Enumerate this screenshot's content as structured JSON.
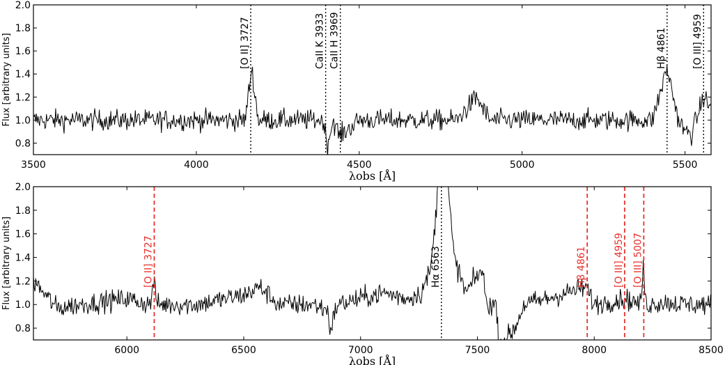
{
  "chart_data": [
    {
      "type": "line",
      "xlabel": "λobs [Å]",
      "ylabel": "Flux [arbitrary units]",
      "xlim": [
        3500,
        5580
      ],
      "ylim": [
        0.7,
        2.0
      ],
      "xticks": [
        "3500",
        "4000",
        "4500",
        "5000",
        "5500"
      ],
      "yticks": [
        "0.8",
        "1.0",
        "1.2",
        "1.4",
        "1.6",
        "1.8",
        "2.0"
      ],
      "series": [
        {
          "style": "noisy spectrum, continuum near 1.0",
          "x": [
            3500,
            3600,
            3700,
            3800,
            3900,
            4000,
            4100,
            4150,
            4170,
            4190,
            4250,
            4300,
            4350,
            4390,
            4402,
            4420,
            4440,
            4500,
            4600,
            4700,
            4800,
            4860,
            4900,
            5000,
            5100,
            5200,
            5300,
            5400,
            5445,
            5480,
            5500,
            5520,
            5557,
            5580
          ],
          "y": [
            1.0,
            1.0,
            1.0,
            1.0,
            1.0,
            1.0,
            1.0,
            1.0,
            1.45,
            1.0,
            1.0,
            1.0,
            1.0,
            1.0,
            0.78,
            1.0,
            0.86,
            1.0,
            1.0,
            1.0,
            1.0,
            1.2,
            1.0,
            1.0,
            1.0,
            1.0,
            1.0,
            1.0,
            1.45,
            1.0,
            0.9,
            0.88,
            1.2,
            1.1
          ]
        }
      ],
      "lines": [
        {
          "label": "[O II] 3727",
          "x": 4167,
          "color": "#000000",
          "style": "dotted"
        },
        {
          "label": "CaII K 3933",
          "x": 4397,
          "color": "#000000",
          "style": "dotted"
        },
        {
          "label": "CaII H 3969",
          "x": 4442,
          "color": "#000000",
          "style": "dotted"
        },
        {
          "label": "Hβ 4861",
          "x": 5445,
          "color": "#000000",
          "style": "dotted"
        },
        {
          "label": "[O III] 4959",
          "x": 5557,
          "color": "#000000",
          "style": "dotted"
        }
      ]
    },
    {
      "type": "line",
      "xlabel": "λobs [Å]",
      "ylabel": "Flux [arbitrary units]",
      "xlim": [
        5600,
        8500
      ],
      "ylim": [
        0.7,
        2.0
      ],
      "xticks": [
        "6000",
        "6500",
        "7000",
        "7500",
        "8000",
        "8500"
      ],
      "yticks": [
        "0.8",
        "1.0",
        "1.2",
        "1.4",
        "1.6",
        "1.8",
        "2.0"
      ],
      "series": [
        {
          "style": "noisy spectrum, continuum near 1.0",
          "x": [
            5600,
            5700,
            5800,
            6000,
            6100,
            6115,
            6130,
            6300,
            6500,
            6570,
            6650,
            6800,
            6860,
            6870,
            6900,
            7000,
            7100,
            7200,
            7260,
            7300,
            7320,
            7340,
            7370,
            7400,
            7450,
            7520,
            7540,
            7580,
            7590,
            7620,
            7660,
            7700,
            7800,
            7965,
            8000,
            8130,
            8200,
            8210,
            8220,
            8300,
            8400,
            8500
          ],
          "y": [
            1.2,
            0.97,
            1.0,
            1.05,
            1.0,
            1.2,
            1.0,
            1.0,
            1.08,
            1.15,
            1.0,
            1.0,
            0.95,
            0.78,
            1.0,
            1.05,
            1.1,
            1.05,
            1.1,
            1.3,
            1.7,
            2.3,
            2.1,
            1.4,
            1.1,
            1.3,
            1.0,
            1.0,
            0.7,
            0.7,
            0.8,
            1.0,
            1.05,
            1.15,
            1.0,
            1.05,
            1.0,
            1.35,
            1.0,
            1.02,
            1.0,
            1.0
          ]
        }
      ],
      "lines": [
        {
          "label": "[O II] 3727",
          "x": 6117,
          "color": "#e8312c",
          "style": "dashed"
        },
        {
          "label": "Hα 6563",
          "x": 7346,
          "color": "#000000",
          "style": "dotted"
        },
        {
          "label": "Hβ 4861",
          "x": 7970,
          "color": "#e8312c",
          "style": "dashed"
        },
        {
          "label": "[O III] 4959",
          "x": 8130,
          "color": "#e8312c",
          "style": "dashed"
        },
        {
          "label": "[O III] 5007",
          "x": 8212,
          "color": "#e8312c",
          "style": "dashed"
        }
      ]
    }
  ]
}
